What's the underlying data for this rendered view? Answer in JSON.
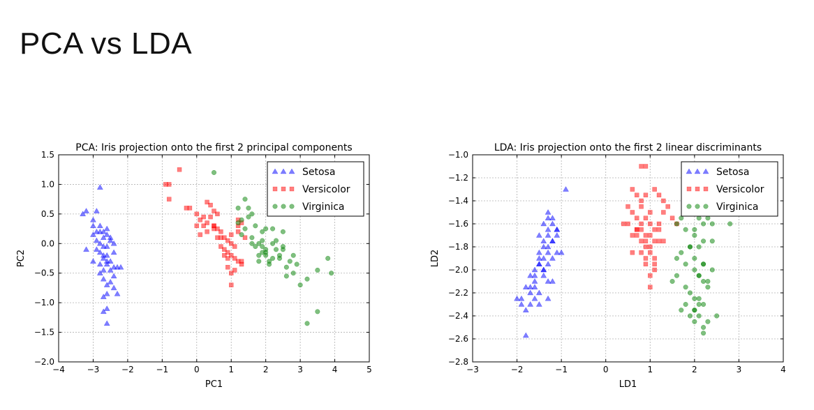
{
  "slide": {
    "title": "PCA vs LDA"
  },
  "colors": {
    "Setosa": "#0000ff",
    "Versicolor": "#ff0000",
    "Virginica": "#008000"
  },
  "chart_data": [
    {
      "type": "scatter",
      "title": "PCA: Iris projection onto the first 2 principal components",
      "xlabel": "PC1",
      "ylabel": "PC2",
      "xlim": [
        -4,
        5
      ],
      "ylim": [
        -2.0,
        1.5
      ],
      "xticks": [
        -4,
        -3,
        -2,
        -1,
        0,
        1,
        2,
        3,
        4,
        5
      ],
      "yticks": [
        -2.0,
        -1.5,
        -1.0,
        -0.5,
        0.0,
        0.5,
        1.0,
        1.5
      ],
      "xtick_labels": [
        "−4",
        "−3",
        "−2",
        "−1",
        "0",
        "1",
        "2",
        "3",
        "4",
        "5"
      ],
      "ytick_labels": [
        "−2.0",
        "−1.5",
        "−1.0",
        "−0.5",
        "0.0",
        "0.5",
        "1.0",
        "1.5"
      ],
      "grid": true,
      "legend": "top-right",
      "series": [
        {
          "name": "Setosa",
          "marker": "triangle",
          "x": [
            -2.8,
            -3.3,
            -3.2,
            -3.0,
            -2.9,
            -3.0,
            -2.8,
            -2.7,
            -2.9,
            -2.8,
            -2.7,
            -2.9,
            -2.8,
            -2.6,
            -2.7,
            -3.0,
            -2.8,
            -2.6,
            -2.4,
            -2.7,
            -2.8,
            -3.0,
            -3.2,
            -2.6,
            -2.5,
            -2.7,
            -2.6,
            -2.9,
            -2.5,
            -2.6,
            -2.7,
            -2.5,
            -2.4,
            -2.3,
            -2.6,
            -2.7,
            -2.4,
            -2.3,
            -2.6,
            -2.7,
            -2.6,
            -2.5,
            -2.4,
            -2.2,
            -2.6,
            -2.7,
            -2.4,
            -2.5,
            -2.6,
            -2.8
          ],
          "y": [
            0.95,
            0.5,
            -0.1,
            0.3,
            0.2,
            0.15,
            0.2,
            0.1,
            0.05,
            0.0,
            -0.05,
            -0.1,
            -0.15,
            -0.2,
            -0.25,
            -0.3,
            -0.35,
            -0.3,
            -0.4,
            -0.45,
            -0.5,
            0.4,
            0.55,
            0.25,
            0.05,
            -0.2,
            -0.35,
            0.55,
            0.1,
            -0.05,
            -0.6,
            -0.65,
            -0.75,
            -0.4,
            -0.85,
            -0.9,
            0.0,
            -0.85,
            -1.1,
            -1.15,
            -1.35,
            -0.45,
            -0.55,
            -0.4,
            -0.7,
            0.2,
            -0.15,
            -0.3,
            0.15,
            0.3
          ]
        },
        {
          "name": "Versicolor",
          "marker": "square",
          "x": [
            -0.5,
            -0.8,
            -0.9,
            -0.8,
            -0.3,
            0.0,
            -0.2,
            0.1,
            0.2,
            0.3,
            0.4,
            0.5,
            0.6,
            0.7,
            0.8,
            0.9,
            1.0,
            0.3,
            0.4,
            0.5,
            0.6,
            0.1,
            0.0,
            0.2,
            0.3,
            0.5,
            0.6,
            0.7,
            0.8,
            0.9,
            1.0,
            1.1,
            1.2,
            1.3,
            0.9,
            1.1,
            1.0,
            1.2,
            1.4,
            1.3,
            1.0,
            1.1,
            1.2,
            1.3,
            1.0,
            0.8,
            0.9,
            1.2,
            0.5,
            0.7
          ],
          "y": [
            1.25,
            1.0,
            1.0,
            0.75,
            0.6,
            0.5,
            0.6,
            0.4,
            0.3,
            0.35,
            0.45,
            0.3,
            0.25,
            0.2,
            0.1,
            0.05,
            0.0,
            0.7,
            0.65,
            0.55,
            0.5,
            0.15,
            0.3,
            0.45,
            0.2,
            0.25,
            0.1,
            -0.05,
            -0.1,
            -0.15,
            -0.2,
            -0.25,
            -0.3,
            -0.35,
            -0.4,
            -0.45,
            -0.5,
            0.2,
            0.1,
            -0.3,
            -0.7,
            -0.05,
            0.4,
            0.35,
            0.15,
            -0.2,
            -0.25,
            0.3,
            0.3,
            0.1
          ]
        },
        {
          "name": "Virginica",
          "marker": "circle",
          "x": [
            0.5,
            1.2,
            1.4,
            1.3,
            1.6,
            1.9,
            1.8,
            2.2,
            2.3,
            2.5,
            2.0,
            2.1,
            1.9,
            2.4,
            2.6,
            2.8,
            3.0,
            3.2,
            3.5,
            3.8,
            3.9,
            1.7,
            1.6,
            1.8,
            2.0,
            2.1,
            2.2,
            2.3,
            2.7,
            2.9,
            2.5,
            1.5,
            1.3,
            1.4,
            1.7,
            1.9,
            2.0,
            2.2,
            2.4,
            2.8,
            3.2,
            3.5,
            2.6,
            2.0,
            1.8,
            1.5,
            1.6,
            1.9,
            2.5,
            1.2
          ],
          "y": [
            1.2,
            0.6,
            0.75,
            0.4,
            0.5,
            0.2,
            0.0,
            0.25,
            0.05,
            -0.1,
            -0.2,
            -0.3,
            -0.05,
            -0.25,
            -0.4,
            -0.5,
            -0.7,
            -1.35,
            -1.15,
            -0.25,
            -0.5,
            -0.05,
            0.0,
            -0.2,
            -0.1,
            -0.35,
            -0.25,
            -0.1,
            -0.3,
            -0.35,
            -0.05,
            0.45,
            0.15,
            0.25,
            0.3,
            0.05,
            -0.15,
            0.0,
            -0.2,
            -0.2,
            -0.6,
            -0.45,
            -0.55,
            0.25,
            -0.3,
            0.6,
            0.1,
            -0.15,
            0.2,
            0.35
          ]
        }
      ]
    },
    {
      "type": "scatter",
      "title": "LDA: Iris projection onto the first 2 linear discriminants",
      "xlabel": "LD1",
      "ylabel": "LD2",
      "xlim": [
        -3,
        4
      ],
      "ylim": [
        -2.8,
        -1.0
      ],
      "xticks": [
        -3,
        -2,
        -1,
        0,
        1,
        2,
        3,
        4
      ],
      "yticks": [
        -2.8,
        -2.6,
        -2.4,
        -2.2,
        -2.0,
        -1.8,
        -1.6,
        -1.4,
        -1.2,
        -1.0
      ],
      "xtick_labels": [
        "−3",
        "−2",
        "−1",
        "0",
        "1",
        "2",
        "3",
        "4"
      ],
      "ytick_labels": [
        "−2.8",
        "−2.6",
        "−2.4",
        "−2.2",
        "−2.0",
        "−1.8",
        "−1.6",
        "−1.4",
        "−1.2",
        "−1.0"
      ],
      "grid": true,
      "legend": "top-right",
      "series": [
        {
          "name": "Setosa",
          "marker": "triangle",
          "x": [
            -0.9,
            -1.3,
            -1.2,
            -1.3,
            -1.1,
            -1.2,
            -1.4,
            -1.3,
            -1.1,
            -1.5,
            -1.4,
            -1.2,
            -1.3,
            -1.5,
            -1.6,
            -1.4,
            -1.3,
            -1.2,
            -1.6,
            -1.7,
            -1.5,
            -1.4,
            -1.3,
            -1.1,
            -1.5,
            -1.6,
            -1.8,
            -1.9,
            -1.5,
            -1.3,
            -1.7,
            -1.8,
            -1.6,
            -2.0,
            -1.9,
            -1.7,
            -1.8,
            -1.4,
            -1.2,
            -1.1,
            -1.3,
            -1.5,
            -1.4,
            -1.6,
            -1.7,
            -1.2,
            -1.0,
            -1.3,
            -1.5,
            -1.4
          ],
          "y": [
            -1.3,
            -1.55,
            -1.6,
            -1.65,
            -1.7,
            -1.75,
            -1.75,
            -1.8,
            -1.85,
            -1.85,
            -1.9,
            -1.9,
            -1.95,
            -1.95,
            -2.0,
            -2.05,
            -2.1,
            -2.1,
            -2.15,
            -2.2,
            -2.2,
            -2.0,
            -1.7,
            -1.65,
            -1.9,
            -2.05,
            -2.15,
            -2.25,
            -2.3,
            -2.25,
            -2.3,
            -2.35,
            -2.25,
            -2.25,
            -2.3,
            -2.15,
            -2.57,
            -1.6,
            -1.55,
            -1.65,
            -1.85,
            -1.95,
            -2.0,
            -2.1,
            -2.05,
            -1.75,
            -1.85,
            -1.5,
            -1.7,
            -1.8
          ],
          "": ""
        },
        {
          "name": "Versicolor",
          "marker": "square",
          "x": [
            0.8,
            0.9,
            0.6,
            0.7,
            0.5,
            0.8,
            1.1,
            1.2,
            1.3,
            1.0,
            0.9,
            0.8,
            0.7,
            0.6,
            1.0,
            1.1,
            1.2,
            0.9,
            0.8,
            1.0,
            1.1,
            0.7,
            0.8,
            0.9,
            1.0,
            0.6,
            0.7,
            1.2,
            1.3,
            0.4,
            0.5,
            0.9,
            1.1,
            1.0,
            0.8,
            0.9,
            1.3,
            1.5,
            1.4,
            1.0,
            0.9,
            1.1,
            1.2,
            0.8,
            0.7,
            1.0,
            1.1,
            0.9,
            0.6,
            1.6
          ],
          "y": [
            -1.1,
            -1.1,
            -1.3,
            -1.35,
            -1.45,
            -1.4,
            -1.3,
            -1.35,
            -1.4,
            -1.5,
            -1.55,
            -1.6,
            -1.65,
            -1.7,
            -1.7,
            -1.75,
            -1.75,
            -1.8,
            -1.85,
            -1.85,
            -1.9,
            -1.55,
            -1.65,
            -1.7,
            -1.6,
            -1.5,
            -1.7,
            -1.65,
            -1.75,
            -1.6,
            -1.6,
            -1.95,
            -1.95,
            -2.05,
            -1.45,
            -1.35,
            -1.5,
            -1.55,
            -1.45,
            -1.8,
            -1.9,
            -2.0,
            -1.6,
            -1.75,
            -1.65,
            -2.15,
            -1.65,
            -1.75,
            -1.85,
            -1.6
          ],
          "": ""
        },
        {
          "name": "Virginica",
          "marker": "circle",
          "x": [
            1.8,
            1.9,
            2.0,
            2.1,
            2.2,
            2.3,
            2.4,
            2.0,
            2.2,
            2.1,
            1.9,
            1.7,
            1.6,
            1.8,
            2.0,
            2.1,
            2.2,
            2.3,
            1.9,
            2.0,
            2.1,
            1.8,
            1.7,
            1.5,
            1.6,
            1.8,
            2.0,
            2.1,
            2.3,
            2.2,
            2.0,
            1.9,
            2.1,
            2.2,
            2.4,
            2.5,
            2.8,
            2.4,
            2.2,
            2.0,
            1.8,
            1.9,
            2.0,
            2.1,
            2.2,
            2.3,
            2.2,
            2.0,
            1.7,
            1.6
          ],
          "y": [
            -1.22,
            -1.45,
            -1.5,
            -1.55,
            -1.6,
            -1.55,
            -1.6,
            -1.65,
            -1.75,
            -1.8,
            -1.8,
            -1.85,
            -1.9,
            -1.95,
            -2.0,
            -2.05,
            -2.1,
            -2.15,
            -2.2,
            -2.25,
            -2.3,
            -2.3,
            -2.35,
            -2.1,
            -2.05,
            -2.15,
            -2.35,
            -2.4,
            -2.45,
            -2.5,
            -2.45,
            -2.4,
            -2.25,
            -2.3,
            -2.0,
            -2.4,
            -1.6,
            -1.75,
            -1.95,
            -1.7,
            -1.65,
            -1.8,
            -1.9,
            -2.05,
            -1.95,
            -2.1,
            -2.55,
            -2.35,
            -1.55,
            -1.6
          ],
          "": ""
        }
      ]
    }
  ]
}
